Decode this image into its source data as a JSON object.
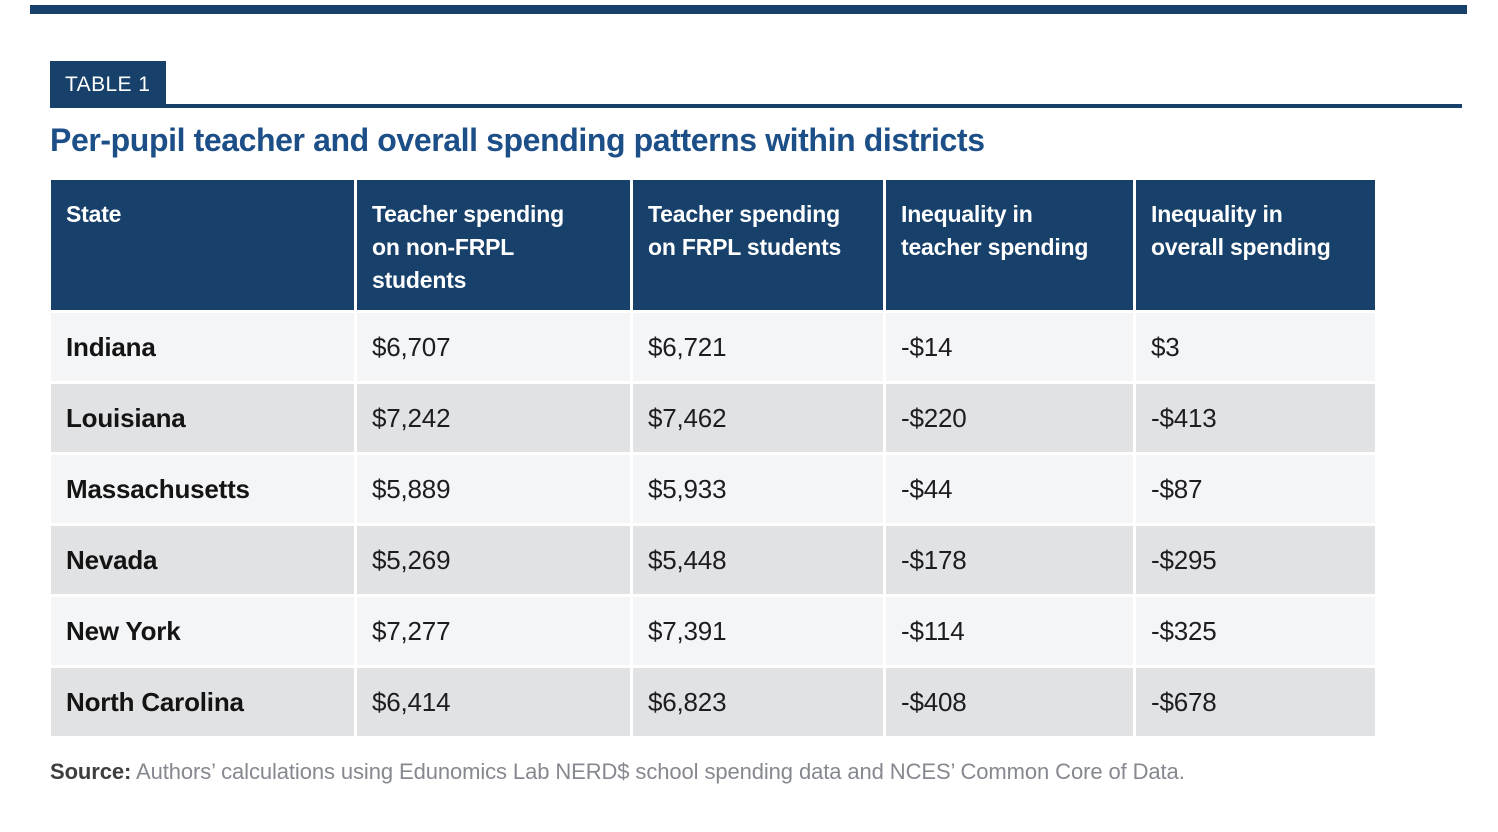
{
  "page": {
    "kicker": "TABLE 1",
    "title": "Per-pupil teacher and overall spending patterns within districts"
  },
  "source": {
    "label": "Source:",
    "text": " Authors’ calculations using Edunomics Lab NERD$ school spending data and NCES’ Common Core of Data."
  },
  "colors": {
    "navy": "#17406B",
    "title_blue": "#1C4E87",
    "row_light": "#F4F5F7",
    "row_dark": "#E1E2E4",
    "body_text": "#1D1D1F",
    "source_gray": "#85888F"
  },
  "chart_data": {
    "type": "table",
    "title": "Per-pupil teacher and overall spending patterns within districts",
    "columns": [
      "State",
      "Teacher spending on non-FRPL students",
      "Teacher spending on FRPL students",
      "Inequality in teacher spending",
      "Inequality in overall spending"
    ],
    "rows": [
      [
        "Indiana",
        "$6,707",
        "$6,721",
        "-$14",
        "$3"
      ],
      [
        "Louisiana",
        "$7,242",
        "$7,462",
        "-$220",
        "-$413"
      ],
      [
        "Massachusetts",
        "$5,889",
        "$5,933",
        "-$44",
        "-$87"
      ],
      [
        "Nevada",
        "$5,269",
        "$5,448",
        "-$178",
        "-$295"
      ],
      [
        "New York",
        "$7,277",
        "$7,391",
        "-$114",
        "-$325"
      ],
      [
        "North Carolina",
        "$6,414",
        "$6,823",
        "-$408",
        "-$678"
      ]
    ]
  }
}
